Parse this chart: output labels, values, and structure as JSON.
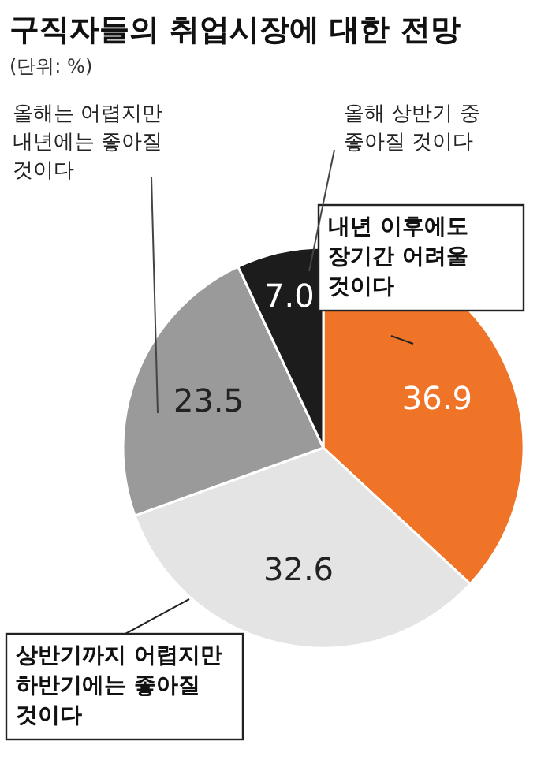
{
  "chart_data": {
    "type": "pie",
    "title": "구직자들의 취업시장에 대한 전망",
    "subtitle": "(단위: %)",
    "categories": [
      "내년 이후에도\n장기간 어려울\n것이다",
      "상반기까지 어렵지만\n하반기에는 좋아질\n것이다",
      "올해는 어렵지만\n내년에는 좋아질\n것이다",
      "올해 상반기 중\n좋아질 것이다"
    ],
    "values": [
      36.9,
      32.6,
      23.5,
      7.0
    ],
    "colors": [
      "#f07428",
      "#e4e4e4",
      "#9a9a9a",
      "#1c1c1c"
    ],
    "value_labels": [
      "36.9",
      "32.6",
      "23.5",
      "7.0"
    ]
  }
}
